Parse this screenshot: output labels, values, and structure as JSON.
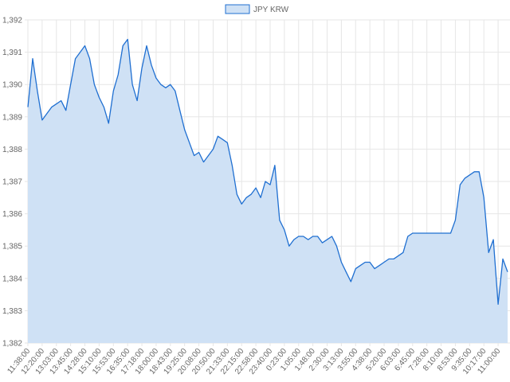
{
  "chart_data": {
    "type": "area",
    "categories": [
      "11:38:00",
      null,
      null,
      "12:20:00",
      null,
      null,
      "13:03:00",
      null,
      null,
      "13:45:00",
      null,
      null,
      "14:28:00",
      null,
      null,
      "15:10:00",
      null,
      null,
      "15:53:00",
      null,
      null,
      "16:35:00",
      null,
      null,
      "17:18:00",
      null,
      null,
      "18:00:00",
      null,
      null,
      "18:43:00",
      null,
      null,
      "19:25:00",
      null,
      null,
      "20:08:00",
      null,
      null,
      "20:50:00",
      null,
      null,
      "21:33:00",
      null,
      null,
      "22:15:00",
      null,
      null,
      "22:58:00",
      null,
      null,
      "23:40:00",
      null,
      null,
      "0:23:00",
      null,
      null,
      "1:05:00",
      null,
      null,
      "1:48:00",
      null,
      null,
      "2:30:00",
      null,
      null,
      "3:13:00",
      null,
      null,
      "3:55:00",
      null,
      null,
      "4:38:00",
      null,
      null,
      "5:20:00",
      null,
      null,
      "6:03:00",
      null,
      null,
      "6:45:00",
      null,
      null,
      "7:28:00",
      null,
      null,
      "8:10:00",
      null,
      null,
      "8:53:00",
      null,
      null,
      "9:35:00",
      null,
      null,
      "10:17:00",
      null,
      null,
      "11:00:00",
      null,
      null
    ],
    "series": [
      {
        "name": "JPY KRW",
        "color": "#1f6fd1",
        "fill_color": "#cfe1f5",
        "values": [
          1389.3,
          1390.8,
          1389.8,
          1388.9,
          1389.1,
          1389.3,
          1389.4,
          1389.5,
          1389.2,
          1390.0,
          1390.8,
          1391.0,
          1391.2,
          1390.8,
          1390.0,
          1389.6,
          1389.3,
          1388.8,
          1389.8,
          1390.3,
          1391.2,
          1391.4,
          1390.0,
          1389.5,
          1390.5,
          1391.2,
          1390.6,
          1390.2,
          1390.0,
          1389.9,
          1390.0,
          1389.8,
          1389.2,
          1388.6,
          1388.2,
          1387.8,
          1387.9,
          1387.6,
          1387.8,
          1388.0,
          1388.4,
          1388.3,
          1388.2,
          1387.5,
          1386.6,
          1386.3,
          1386.5,
          1386.6,
          1386.8,
          1386.5,
          1387.0,
          1386.9,
          1387.5,
          1385.8,
          1385.5,
          1385.0,
          1385.2,
          1385.3,
          1385.3,
          1385.2,
          1385.3,
          1385.3,
          1385.1,
          1385.2,
          1385.3,
          1385.0,
          1384.5,
          1384.2,
          1383.9,
          1384.3,
          1384.4,
          1384.5,
          1384.5,
          1384.3,
          1384.4,
          1384.5,
          1384.6,
          1384.6,
          1384.7,
          1384.8,
          1385.3,
          1385.4,
          1385.4,
          1385.4,
          1385.4,
          1385.4,
          1385.4,
          1385.4,
          1385.4,
          1385.4,
          1385.8,
          1386.9,
          1387.1,
          1387.2,
          1387.3,
          1387.3,
          1386.5,
          1384.8,
          1385.2,
          1383.2,
          1384.6,
          1384.2
        ]
      }
    ],
    "ylim": [
      1382,
      1392
    ],
    "yticks": [
      {
        "value": 1382,
        "label": "1,382"
      },
      {
        "value": 1383,
        "label": "1,383"
      },
      {
        "value": 1384,
        "label": "1,384"
      },
      {
        "value": 1385,
        "label": "1,385"
      },
      {
        "value": 1386,
        "label": "1,386"
      },
      {
        "value": 1387,
        "label": "1,387"
      },
      {
        "value": 1388,
        "label": "1,388"
      },
      {
        "value": 1389,
        "label": "1,389"
      },
      {
        "value": 1390,
        "label": "1,390"
      },
      {
        "value": 1391,
        "label": "1,391"
      },
      {
        "value": 1392,
        "label": "1,392"
      }
    ],
    "grid": true,
    "legend": "top"
  }
}
